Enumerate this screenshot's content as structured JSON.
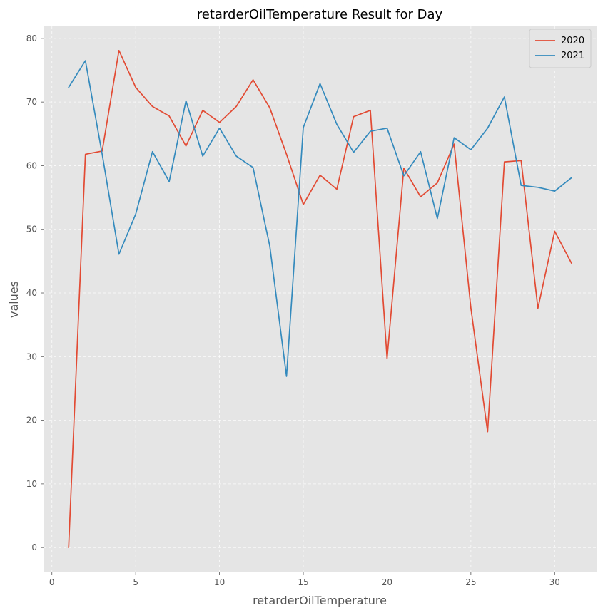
{
  "chart_data": {
    "type": "line",
    "title": "retarderOilTemperature Result for Day",
    "xlabel": "retarderOilTemperature",
    "ylabel": "values",
    "xlim": [
      -0.5,
      32.5
    ],
    "ylim": [
      -3.9,
      82
    ],
    "xticks": [
      0,
      5,
      10,
      15,
      20,
      25,
      30
    ],
    "yticks": [
      0,
      10,
      20,
      30,
      40,
      50,
      60,
      70,
      80
    ],
    "grid": true,
    "legend_position": "top-right",
    "x": [
      1,
      2,
      3,
      4,
      5,
      6,
      7,
      8,
      9,
      10,
      11,
      12,
      13,
      14,
      15,
      16,
      17,
      18,
      19,
      20,
      21,
      22,
      23,
      24,
      25,
      26,
      27,
      28,
      29,
      30,
      31
    ],
    "series": [
      {
        "name": "2020",
        "color": "#E24A33",
        "values": [
          0,
          61.8,
          62.3,
          78.1,
          72.3,
          69.3,
          67.8,
          63.1,
          68.7,
          66.8,
          69.3,
          73.5,
          69.1,
          61.8,
          53.9,
          58.5,
          56.3,
          67.7,
          68.7,
          29.7,
          59.6,
          55.1,
          57.3,
          63.4,
          37.6,
          18.2,
          60.6,
          60.8,
          37.6,
          49.7,
          44.7
        ]
      },
      {
        "name": "2021",
        "color": "#348ABD",
        "values": [
          72.3,
          76.5,
          61.8,
          46.1,
          52.4,
          62.2,
          57.5,
          70.2,
          61.5,
          65.9,
          61.5,
          59.7,
          47.4,
          26.9,
          66.0,
          72.9,
          66.5,
          62.1,
          65.4,
          65.9,
          58.4,
          62.2,
          51.7,
          64.4,
          62.5,
          65.9,
          70.8,
          56.9,
          56.6,
          56.0,
          58.1
        ]
      }
    ]
  }
}
